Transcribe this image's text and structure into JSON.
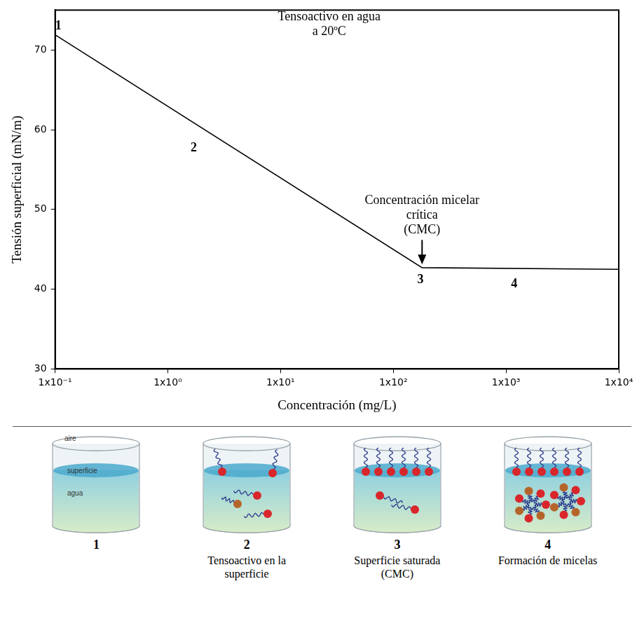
{
  "chart_data": {
    "type": "line",
    "x_label": "Concentración (mg/L)",
    "y_label": "Tensión superficial (mN/m)",
    "log": "x",
    "grid": false,
    "color": "#000000",
    "x": [
      0.1,
      180,
      10000
    ],
    "values": [
      71.9,
      42.7,
      42.5
    ],
    "xlim": [
      0.1,
      10000
    ],
    "xticks": [
      {
        "value": 0.1,
        "label": "1x10⁻¹"
      },
      {
        "value": 1,
        "label": "1x10⁰"
      },
      {
        "value": 10,
        "label": "1x10¹"
      },
      {
        "value": 100,
        "label": "1x10²"
      },
      {
        "value": 1000,
        "label": "1x10³"
      },
      {
        "value": 10000,
        "label": "1x10⁴"
      }
    ],
    "ylim": [
      30,
      75
    ],
    "yticks": [
      30,
      40,
      50,
      60,
      70
    ],
    "stage_labels": [
      {
        "text": "1",
        "x": 0.107,
        "y": 73
      },
      {
        "text": "2",
        "x": 1.7,
        "y": 57.7
      },
      {
        "text": "3",
        "x": 174,
        "y": 41.2
      },
      {
        "text": "4",
        "x": 1180,
        "y": 40.6
      }
    ],
    "annotations": [
      {
        "lines": [
          "Tensoactivo en agua",
          "a 20ºC"
        ],
        "x": 27,
        "y": 74.1
      },
      {
        "lines": [
          "Concentración micelar",
          "crítica",
          "(CMC)"
        ],
        "x": 180,
        "y": 51.1,
        "arrow_to": [
          180,
          43.1
        ]
      }
    ]
  },
  "diagram": {
    "panels": [
      {
        "number": "1",
        "labels": [
          "aire",
          "superficie",
          "agua"
        ]
      },
      {
        "number": "2",
        "caption": "Tensoactivo en la superficie"
      },
      {
        "number": "3",
        "caption": "Superficie saturada (CMC)"
      },
      {
        "number": "4",
        "caption": "Formación de micelas"
      }
    ]
  }
}
